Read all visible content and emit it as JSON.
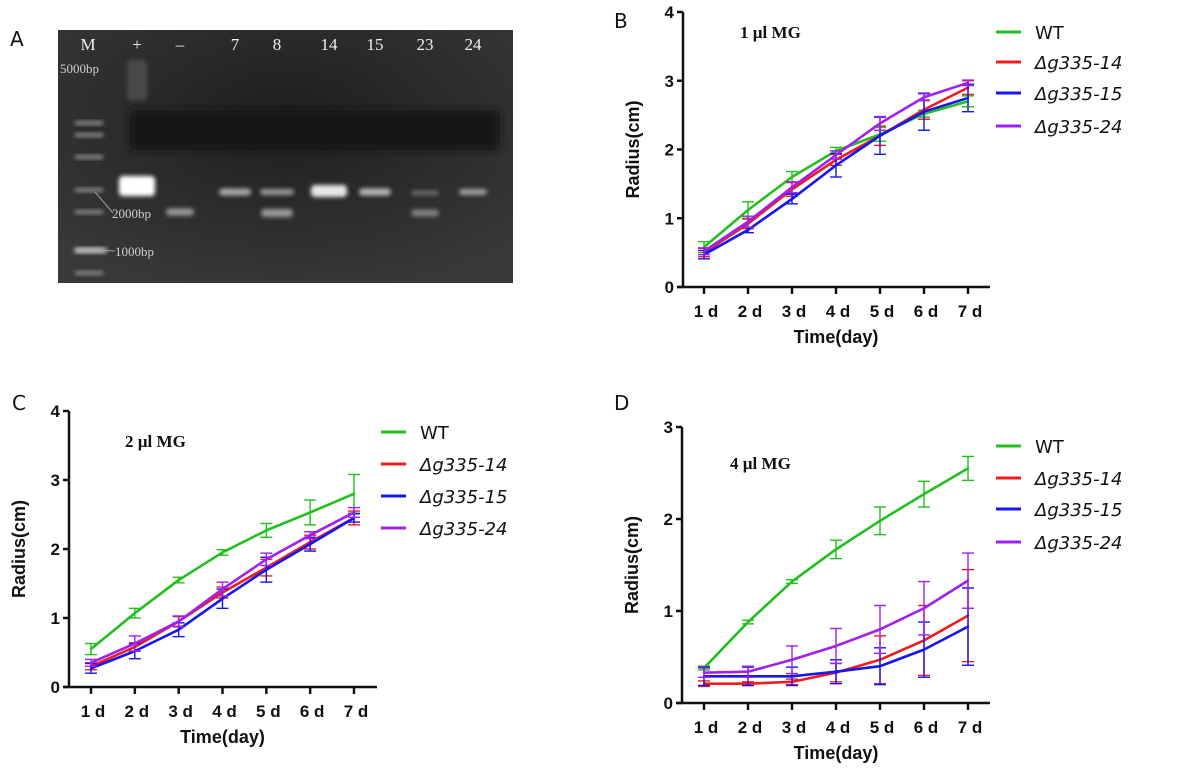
{
  "panel_labels": [
    "A",
    "B",
    "C",
    "D"
  ],
  "gel": {
    "lanes": [
      "M",
      "+",
      "–",
      "7",
      "8",
      "14",
      "15",
      "23",
      "24"
    ],
    "markers": [
      "5000bp",
      "2000bp",
      "1000bp"
    ]
  },
  "colors": {
    "WT": "#22c01e",
    "d14": "#ee1c1c",
    "d15": "#1616ee",
    "d24": "#a020f0",
    "gel_bg": "#2b2b2b"
  },
  "chart_data": [
    {
      "type": "line",
      "panel": "B",
      "annotation": "1 µl MG",
      "xlabel": "Time(day)",
      "ylabel": "Radius(cm)",
      "categories": [
        "1 d",
        "2 d",
        "3 d",
        "4 d",
        "5 d",
        "6 d",
        "7 d"
      ],
      "ylim": [
        0,
        4
      ],
      "yticks": [
        "0",
        "1",
        "2",
        "3",
        "4"
      ],
      "legend_placement": "right",
      "series": [
        {
          "name": "WT",
          "color": "#22c01e",
          "values": [
            0.58,
            1.12,
            1.6,
            1.98,
            2.22,
            2.52,
            2.7
          ],
          "errors": [
            0.08,
            0.12,
            0.08,
            0.05,
            0.1,
            0.05,
            0.08
          ]
        },
        {
          "name": "Δg335-14",
          "color": "#ee1c1c",
          "values": [
            0.5,
            0.92,
            1.42,
            1.85,
            2.2,
            2.58,
            2.9
          ],
          "errors": [
            0.06,
            0.07,
            0.1,
            0.08,
            0.14,
            0.14,
            0.1
          ]
        },
        {
          "name": "Δg335-15",
          "color": "#1616ee",
          "values": [
            0.47,
            0.83,
            1.28,
            1.77,
            2.2,
            2.55,
            2.75
          ],
          "errors": [
            0.06,
            0.04,
            0.07,
            0.17,
            0.27,
            0.27,
            0.2
          ]
        },
        {
          "name": "Δg335-24",
          "color": "#a020f0",
          "values": [
            0.52,
            0.95,
            1.45,
            1.92,
            2.38,
            2.76,
            2.97
          ],
          "errors": [
            0.05,
            0.08,
            0.08,
            0.06,
            0.1,
            0.05,
            0.04
          ]
        }
      ]
    },
    {
      "type": "line",
      "panel": "C",
      "annotation": "2 µl MG",
      "xlabel": "Time(day)",
      "ylabel": "Radius(cm)",
      "categories": [
        "1 d",
        "2 d",
        "3 d",
        "4 d",
        "5 d",
        "6 d",
        "7 d"
      ],
      "ylim": [
        0,
        4
      ],
      "yticks": [
        "0",
        "1",
        "2",
        "3",
        "4"
      ],
      "legend_placement": "right",
      "series": [
        {
          "name": "WT",
          "color": "#22c01e",
          "values": [
            0.55,
            1.07,
            1.55,
            1.95,
            2.27,
            2.53,
            2.8
          ],
          "errors": [
            0.08,
            0.07,
            0.04,
            0.04,
            0.1,
            0.18,
            0.28
          ]
        },
        {
          "name": "Δg335-14",
          "color": "#ee1c1c",
          "values": [
            0.3,
            0.58,
            0.95,
            1.37,
            1.73,
            2.1,
            2.45
          ],
          "errors": [
            0.05,
            0.06,
            0.07,
            0.08,
            0.12,
            0.1,
            0.1
          ]
        },
        {
          "name": "Δg335-15",
          "color": "#1616ee",
          "values": [
            0.27,
            0.52,
            0.83,
            1.28,
            1.7,
            2.07,
            2.45
          ],
          "errors": [
            0.07,
            0.11,
            0.1,
            0.14,
            0.18,
            0.1,
            0.06
          ]
        },
        {
          "name": "Δg335-24",
          "color": "#a020f0",
          "values": [
            0.35,
            0.63,
            0.95,
            1.42,
            1.85,
            2.2,
            2.53
          ],
          "errors": [
            0.05,
            0.11,
            0.08,
            0.1,
            0.09,
            0.05,
            0.07
          ]
        }
      ]
    },
    {
      "type": "line",
      "panel": "D",
      "annotation": "4 µl MG",
      "xlabel": "Time(day)",
      "ylabel": "Radius(cm)",
      "categories": [
        "1 d",
        "2 d",
        "3 d",
        "4 d",
        "5 d",
        "6 d",
        "7 d"
      ],
      "ylim": [
        0,
        3
      ],
      "yticks": [
        "0",
        "1",
        "2",
        "3"
      ],
      "legend_placement": "right",
      "series": [
        {
          "name": "WT",
          "color": "#22c01e",
          "values": [
            0.38,
            0.88,
            1.32,
            1.67,
            1.98,
            2.27,
            2.55
          ],
          "errors": [
            0.02,
            0.02,
            0.02,
            0.1,
            0.15,
            0.14,
            0.13
          ]
        },
        {
          "name": "Δg335-14",
          "color": "#ee1c1c",
          "values": [
            0.21,
            0.21,
            0.23,
            0.33,
            0.47,
            0.68,
            0.95
          ],
          "errors": [
            0.03,
            0.02,
            0.03,
            0.1,
            0.26,
            0.38,
            0.5
          ]
        },
        {
          "name": "Δg335-15",
          "color": "#1616ee",
          "values": [
            0.29,
            0.29,
            0.29,
            0.34,
            0.4,
            0.58,
            0.83
          ],
          "errors": [
            0.1,
            0.1,
            0.1,
            0.13,
            0.2,
            0.3,
            0.42
          ]
        },
        {
          "name": "Δg335-24",
          "color": "#a020f0",
          "values": [
            0.33,
            0.34,
            0.47,
            0.62,
            0.8,
            1.03,
            1.33
          ],
          "errors": [
            0.05,
            0.06,
            0.15,
            0.19,
            0.26,
            0.29,
            0.3
          ]
        }
      ]
    }
  ]
}
